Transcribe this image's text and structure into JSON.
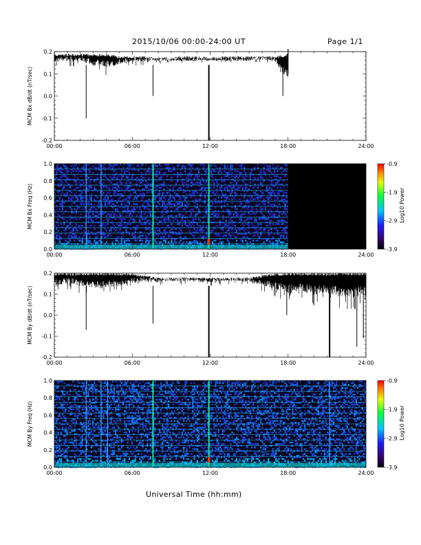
{
  "header": {
    "date_range": "2015/10/06  00:00-24:00 UT",
    "page": "Page 1/1"
  },
  "footer": {
    "xlabel": "Universal Time (hh:mm)"
  },
  "colors": {
    "trace": "#000000",
    "background": "#ffffff",
    "spectrogram_nodata": "#000000"
  },
  "chart_data": [
    {
      "type": "line",
      "ylabel": "MCM Bx dB/dt (nT/sec)",
      "xlim": [
        0,
        24
      ],
      "ylim": [
        -0.2,
        0.2
      ],
      "xticks": [
        "00:00",
        "06:00",
        "12:00",
        "18:00",
        "24:00"
      ],
      "yticks": [
        "-0.2",
        "-0.1",
        "0.0",
        "0.1",
        "0.2"
      ],
      "data_end_hour": 18.0,
      "series": [
        {
          "x": [
            0,
            1,
            2,
            3,
            4,
            5,
            6,
            7,
            8,
            9,
            10,
            11,
            12,
            13,
            14,
            15,
            16,
            17,
            18
          ],
          "upper": [
            0.19,
            0.19,
            0.19,
            0.19,
            0.19,
            0.18,
            0.18,
            0.18,
            0.17,
            0.17,
            0.17,
            0.17,
            0.17,
            0.17,
            0.17,
            0.17,
            0.18,
            0.18,
            0.19
          ],
          "lower": [
            0.12,
            0.13,
            0.13,
            0.1,
            0.09,
            0.11,
            0.13,
            0.13,
            0.14,
            0.14,
            0.15,
            0.15,
            0.14,
            0.15,
            0.15,
            0.15,
            0.14,
            0.13,
            0.0
          ]
        }
      ],
      "spikes": [
        {
          "x": 2.45,
          "y": -0.1
        },
        {
          "x": 7.6,
          "y": 0.0
        },
        {
          "x": 11.9,
          "y": -0.2
        },
        {
          "x": 17.6,
          "y": 0.0
        }
      ]
    },
    {
      "type": "heatmap",
      "ylabel": "MCM Bx Freq (Hz)",
      "xlim": [
        0,
        24
      ],
      "ylim": [
        0,
        1.0
      ],
      "xticks": [
        "00:00",
        "06:00",
        "12:00",
        "18:00",
        "24:00"
      ],
      "yticks": [
        "0.0",
        "0.2",
        "0.4",
        "0.6",
        "0.8",
        "1.0"
      ],
      "colorbar": {
        "label": "Log10 Power",
        "range": [
          -3.9,
          -0.9
        ],
        "ticks": [
          "-0.9",
          "-1.9",
          "-2.9",
          "-3.9"
        ]
      },
      "data_end_hour": 18.0,
      "harmonic_lines_hz": [
        0.0625,
        0.125,
        0.1875,
        0.25,
        0.3125,
        0.375,
        0.4375,
        0.5,
        0.5625,
        0.625,
        0.6875,
        0.75,
        0.8125,
        0.875,
        0.9375
      ],
      "vertical_events_hours": [
        2.45,
        3.6,
        7.6,
        11.9
      ]
    },
    {
      "type": "line",
      "ylabel": "MCM By dB/dt (nT/sec)",
      "xlim": [
        0,
        24
      ],
      "ylim": [
        -0.2,
        0.2
      ],
      "xticks": [
        "00:00",
        "06:00",
        "12:00",
        "18:00",
        "24:00"
      ],
      "yticks": [
        "-0.2",
        "-0.1",
        "0.0",
        "0.1",
        "0.2"
      ],
      "data_end_hour": 24.0,
      "series": [
        {
          "x": [
            0,
            1,
            2,
            3,
            4,
            5,
            6,
            7,
            8,
            9,
            10,
            11,
            12,
            13,
            14,
            15,
            16,
            17,
            18,
            19,
            20,
            21,
            22,
            23,
            24
          ],
          "upper": [
            0.2,
            0.2,
            0.2,
            0.2,
            0.2,
            0.2,
            0.2,
            0.19,
            0.18,
            0.18,
            0.18,
            0.18,
            0.18,
            0.18,
            0.18,
            0.18,
            0.19,
            0.2,
            0.2,
            0.2,
            0.2,
            0.2,
            0.2,
            0.2,
            0.2
          ],
          "lower": [
            0.1,
            0.12,
            0.1,
            0.09,
            0.09,
            0.1,
            0.12,
            0.13,
            0.13,
            0.14,
            0.14,
            0.13,
            0.13,
            0.14,
            0.14,
            0.13,
            0.11,
            0.08,
            0.05,
            0.07,
            0.04,
            0.05,
            0.03,
            0.02,
            0.05
          ]
        }
      ],
      "spikes": [
        {
          "x": 2.45,
          "y": -0.07
        },
        {
          "x": 7.6,
          "y": -0.04
        },
        {
          "x": 11.9,
          "y": -0.2
        },
        {
          "x": 17.9,
          "y": 0.0
        },
        {
          "x": 21.2,
          "y": -0.2
        },
        {
          "x": 23.3,
          "y": -0.15
        },
        {
          "x": 23.8,
          "y": -0.11
        }
      ]
    },
    {
      "type": "heatmap",
      "ylabel": "MCM By Freq (Hz)",
      "xlim": [
        0,
        24
      ],
      "ylim": [
        0,
        1.0
      ],
      "xticks": [
        "00:00",
        "06:00",
        "12:00",
        "18:00",
        "24:00"
      ],
      "yticks": [
        "0.0",
        "0.2",
        "0.4",
        "0.6",
        "0.8",
        "1.0"
      ],
      "colorbar": {
        "label": "Log10 Power",
        "range": [
          -3.9,
          -0.9
        ],
        "ticks": [
          "-0.9",
          "-1.9",
          "-2.9",
          "-3.9"
        ]
      },
      "data_end_hour": 24.0,
      "harmonic_lines_hz": [
        0.0625,
        0.125,
        0.1875,
        0.25,
        0.3125,
        0.375,
        0.4375,
        0.5,
        0.5625,
        0.625,
        0.6875,
        0.75,
        0.8125,
        0.875,
        0.9375
      ],
      "vertical_events_hours": [
        2.45,
        3.6,
        4.1,
        7.6,
        11.9,
        21.2
      ]
    }
  ]
}
